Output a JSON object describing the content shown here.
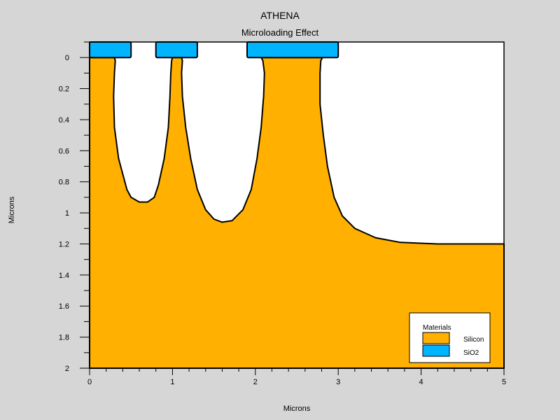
{
  "chart_data": {
    "type": "area",
    "title": "ATHENA",
    "subtitle": "Microloading Effect",
    "xlabel": "Microns",
    "ylabel": "Microns",
    "xlim": [
      0,
      5
    ],
    "ylim": [
      2,
      -0.1
    ],
    "y_axis_inverted": true,
    "grid": false,
    "x_ticks": [
      "0",
      "1",
      "2",
      "3",
      "4",
      "5"
    ],
    "y_ticks": [
      "0",
      "0.2",
      "0.4",
      "0.6",
      "0.8",
      "1",
      "1.2",
      "1.4",
      "1.6",
      "1.8",
      "2"
    ],
    "legend": {
      "title": "Materials",
      "placement": "bottom-right",
      "entries": [
        {
          "name": "Silicon",
          "color": "#ffb000"
        },
        {
          "name": "SiO2",
          "color": "#00b4ff"
        }
      ]
    },
    "materials": [
      {
        "name": "Silicon",
        "color": "#ffb000",
        "outline": [
          [
            0,
            2.0
          ],
          [
            0,
            0.0
          ],
          [
            0.3,
            0.0
          ],
          [
            0.31,
            0.02
          ],
          [
            0.3,
            0.1
          ],
          [
            0.29,
            0.25
          ],
          [
            0.3,
            0.45
          ],
          [
            0.35,
            0.65
          ],
          [
            0.45,
            0.85
          ],
          [
            0.5,
            0.9
          ],
          [
            0.6,
            0.93
          ],
          [
            0.7,
            0.93
          ],
          [
            0.78,
            0.9
          ],
          [
            0.83,
            0.82
          ],
          [
            0.9,
            0.65
          ],
          [
            0.95,
            0.45
          ],
          [
            0.97,
            0.25
          ],
          [
            0.98,
            0.1
          ],
          [
            0.99,
            0.02
          ],
          [
            1.0,
            0.0
          ],
          [
            1.11,
            0.0
          ],
          [
            1.12,
            0.02
          ],
          [
            1.11,
            0.1
          ],
          [
            1.12,
            0.25
          ],
          [
            1.16,
            0.45
          ],
          [
            1.22,
            0.65
          ],
          [
            1.3,
            0.85
          ],
          [
            1.4,
            0.98
          ],
          [
            1.5,
            1.04
          ],
          [
            1.6,
            1.06
          ],
          [
            1.72,
            1.05
          ],
          [
            1.85,
            0.98
          ],
          [
            1.95,
            0.85
          ],
          [
            2.02,
            0.65
          ],
          [
            2.07,
            0.45
          ],
          [
            2.1,
            0.25
          ],
          [
            2.11,
            0.1
          ],
          [
            2.09,
            0.02
          ],
          [
            2.07,
            0.0
          ],
          [
            2.81,
            0.0
          ],
          [
            2.79,
            0.02
          ],
          [
            2.78,
            0.1
          ],
          [
            2.78,
            0.3
          ],
          [
            2.82,
            0.5
          ],
          [
            2.87,
            0.7
          ],
          [
            2.95,
            0.9
          ],
          [
            3.05,
            1.02
          ],
          [
            3.2,
            1.1
          ],
          [
            3.45,
            1.16
          ],
          [
            3.75,
            1.19
          ],
          [
            4.2,
            1.2
          ],
          [
            5,
            1.2
          ],
          [
            5,
            2.0
          ]
        ]
      },
      {
        "name": "SiO2",
        "color": "#00b4ff",
        "blocks": [
          {
            "x": [
              0.0,
              0.5
            ],
            "y": [
              -0.1,
              0.0
            ]
          },
          {
            "x": [
              0.8,
              1.3
            ],
            "y": [
              -0.1,
              0.0
            ]
          },
          {
            "x": [
              1.9,
              3.0
            ],
            "y": [
              -0.1,
              0.0
            ]
          }
        ]
      }
    ]
  }
}
